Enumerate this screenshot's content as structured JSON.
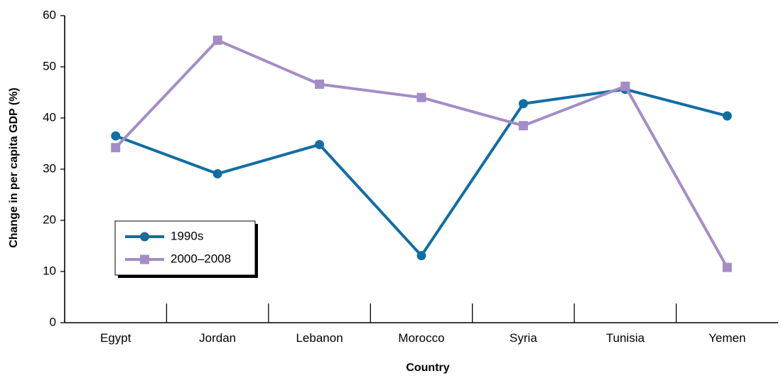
{
  "chart_data": {
    "type": "line",
    "title": "",
    "xlabel": "Country",
    "ylabel": "Change in per capita GDP (%)",
    "categories": [
      "Egypt",
      "Jordan",
      "Lebanon",
      "Morocco",
      "Syria",
      "Tunisia",
      "Yemen"
    ],
    "ylim": [
      0,
      60
    ],
    "yticks": [
      0,
      10,
      20,
      30,
      40,
      50,
      60
    ],
    "grid": false,
    "legend_position": "lower-left",
    "series": [
      {
        "name": "1990s",
        "marker": "circle",
        "color": "#0f6ea3",
        "values": [
          36.5,
          29.1,
          34.8,
          13.1,
          42.8,
          45.6,
          40.4
        ]
      },
      {
        "name": "2000–2008",
        "marker": "square",
        "color": "#a38dc6",
        "values": [
          34.2,
          55.2,
          46.6,
          44.0,
          38.5,
          46.2,
          10.8
        ]
      }
    ]
  }
}
